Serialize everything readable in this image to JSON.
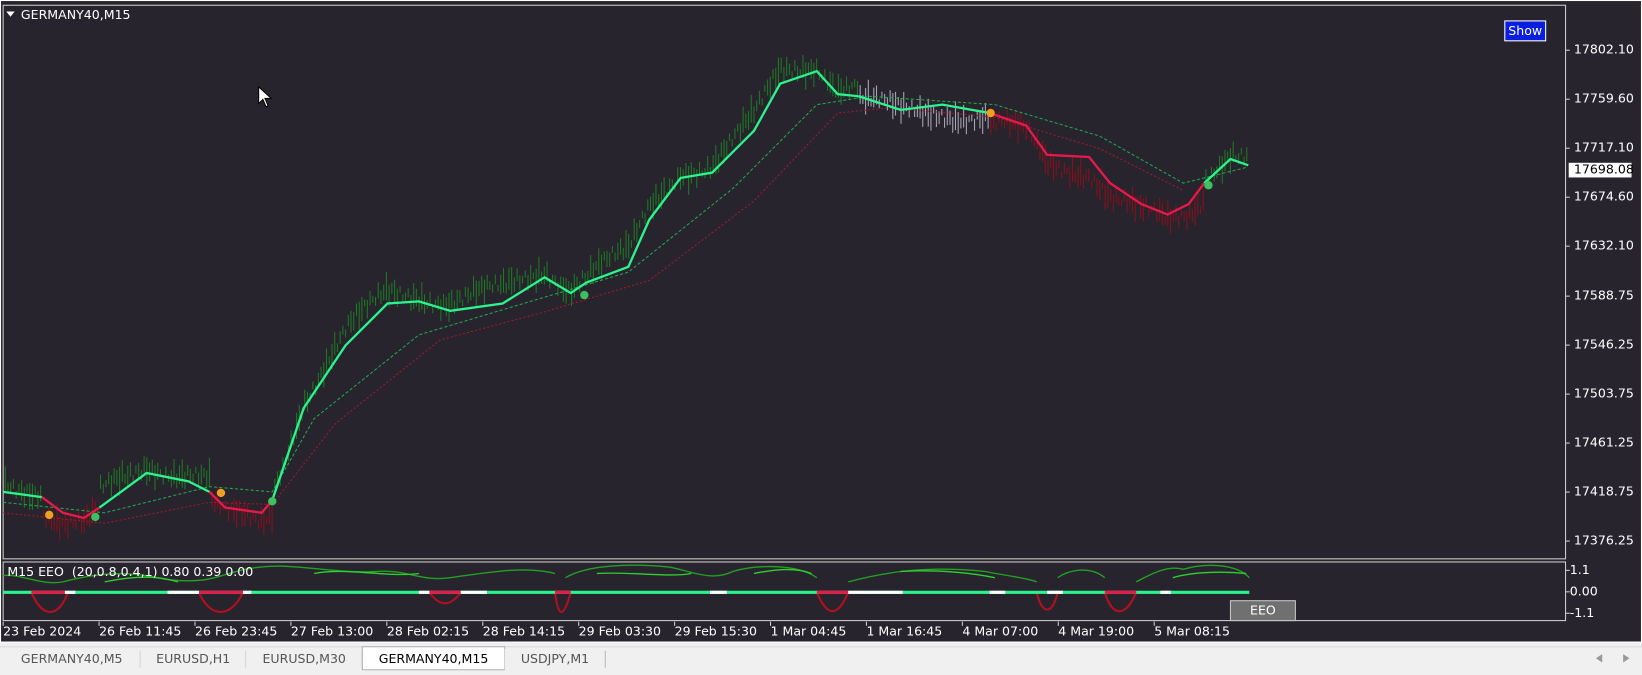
{
  "window": {
    "symbol": "GERMANY40,M15",
    "button": "Show"
  },
  "price_axis": {
    "ticks": [
      {
        "value": 17802.1,
        "label": "17802.10"
      },
      {
        "value": 17759.6,
        "label": "17759.60"
      },
      {
        "value": 17717.1,
        "label": "17717.10"
      },
      {
        "value": 17674.6,
        "label": "17674.60"
      },
      {
        "value": 17632.1,
        "label": "17632.10"
      },
      17588.75,
      17546.25,
      17503.75,
      17461.25,
      17418.75,
      17376.25
    ],
    "current": 17698.08
  },
  "indicator": {
    "header": "M15 EEO  (20,0.8,0.4,1) 0.80 0.39 0.00",
    "ticks": [
      1.1,
      {
        "value": 0,
        "label": "0.00"
      },
      -1.1
    ],
    "button": "EEO"
  },
  "time_axis": [
    "23 Feb 2024",
    "26 Feb 11:45",
    "26 Feb 23:45",
    "27 Feb 13:00",
    "28 Feb 02:15",
    "28 Feb 14:15",
    "29 Feb 03:30",
    "29 Feb 15:30",
    "1 Mar 04:45",
    "1 Mar 16:45",
    "4 Mar 07:00",
    "4 Mar 19:00",
    "5 Mar 08:15"
  ],
  "tabs": [
    {
      "label": "GERMANY40,M5",
      "active": false
    },
    {
      "label": "EURUSD,H1",
      "active": false
    },
    {
      "label": "EURUSD,M30",
      "active": false
    },
    {
      "label": "GERMANY40,M15",
      "active": true
    },
    {
      "label": "USDJPY,M1",
      "active": false
    }
  ]
}
